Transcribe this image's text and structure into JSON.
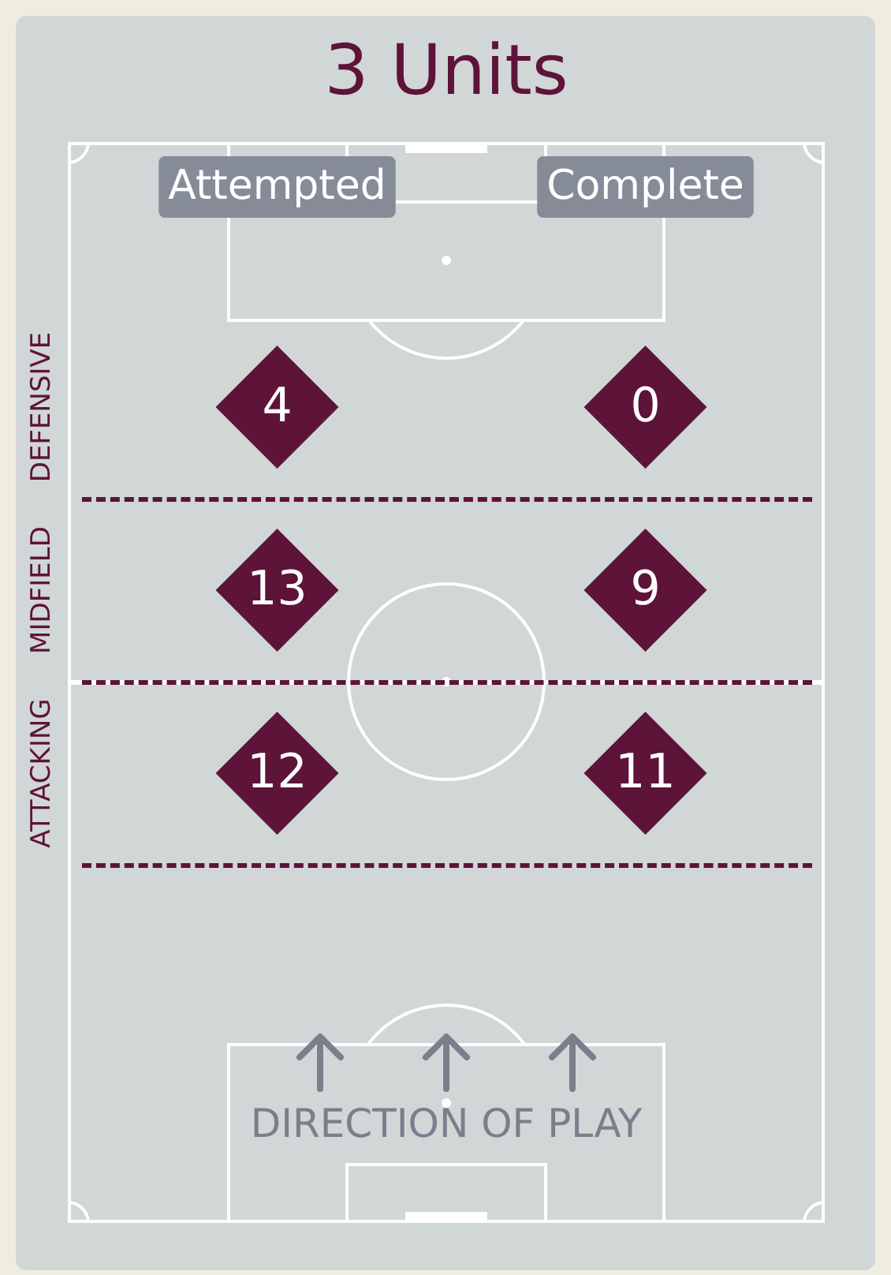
{
  "chart_data": {
    "type": "heatmap",
    "title": "3 Units",
    "categories": [
      "Attempted",
      "Complete"
    ],
    "y_categories": [
      "DEFENSIVE",
      "MIDFIELD",
      "ATTACKING"
    ],
    "cells": [
      [
        4,
        0
      ],
      [
        13,
        9
      ],
      [
        12,
        11
      ]
    ],
    "color": "#5e1338",
    "data_labels": true,
    "annotations": [
      "DIRECTION OF PLAY"
    ]
  }
}
